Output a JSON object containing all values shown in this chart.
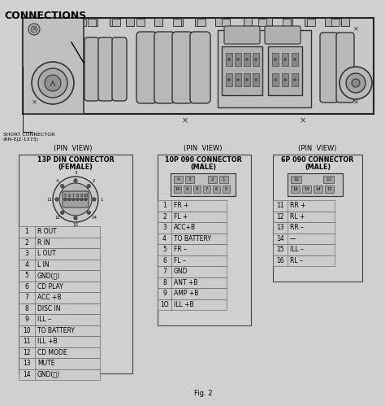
{
  "title": "CONNECTIONS",
  "bg_color": "#d0d0d0",
  "fig_label": "Fig. 2",
  "short_connector_label": "SHORT CONNECTOR\n(RN-EJZ-1373)",
  "pin_view_label": "(PIN  VIEW)",
  "connector1_title_line1": "13P DIN CONNECTOR",
  "connector1_title_line2": "(FEMALE)",
  "connector1_pins": [
    [
      1,
      "R OUT"
    ],
    [
      2,
      "R IN"
    ],
    [
      3,
      "L OUT"
    ],
    [
      4,
      "L IN"
    ],
    [
      5,
      "GND(小)"
    ],
    [
      6,
      "CD PLAY"
    ],
    [
      7,
      "ACC +B"
    ],
    [
      8,
      "DISC IN"
    ],
    [
      9,
      "ILL –"
    ],
    [
      10,
      "TO BATTERY"
    ],
    [
      11,
      "ILL +B"
    ],
    [
      12,
      "CD MODE"
    ],
    [
      13,
      "MUTE"
    ],
    [
      14,
      "GND(大)"
    ]
  ],
  "connector2_title_line1": "10P 090 CONNECTOR",
  "connector2_title_line2": "(MALE)",
  "connector2_pins": [
    [
      1,
      "FR +"
    ],
    [
      2,
      "FL +"
    ],
    [
      3,
      "ACC+B"
    ],
    [
      4,
      "TO BATTERY"
    ],
    [
      5,
      "FR –"
    ],
    [
      6,
      "FL –"
    ],
    [
      7,
      "GND"
    ],
    [
      8,
      "ANT +B"
    ],
    [
      9,
      "AMP +B"
    ],
    [
      10,
      "ILL +B"
    ]
  ],
  "connector3_title_line1": "6P 090 CONNECTOR",
  "connector3_title_line2": "(MALE)",
  "connector3_pins": [
    [
      11,
      "RR +"
    ],
    [
      12,
      "RL +"
    ],
    [
      13,
      "RR –"
    ],
    [
      14,
      "—"
    ],
    [
      15,
      "ILL –"
    ],
    [
      16,
      "RL –"
    ]
  ]
}
